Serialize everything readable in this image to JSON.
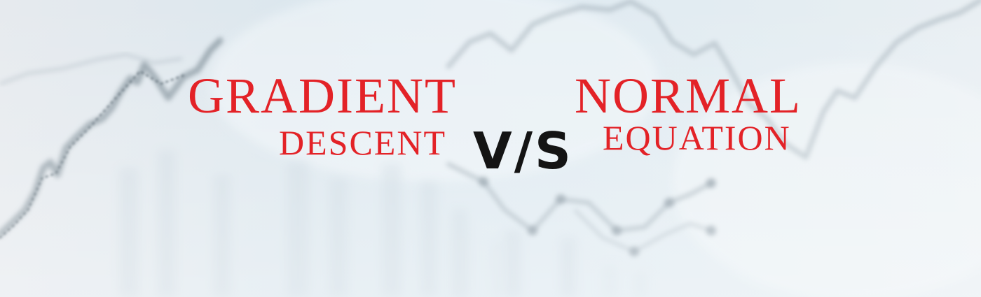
{
  "banner": {
    "left_title_line1": "GRADIENT",
    "left_title_line2": "DESCENT",
    "versus": "V/S",
    "right_title_line1": "NORMAL",
    "right_title_line2": "EQUATION"
  },
  "colors": {
    "title_red": "#e32227",
    "versus_black": "#141414",
    "background_blue": "#dfeaf1"
  },
  "background": {
    "description_icon": "blurred-stock-chart-background"
  }
}
